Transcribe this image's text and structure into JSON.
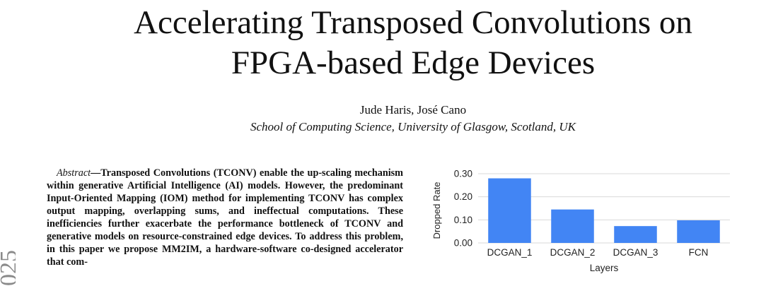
{
  "paper": {
    "title_line1": "Accelerating Transposed Convolutions on",
    "title_line2": "FPGA-based Edge Devices",
    "authors": "Jude Haris, José Cano",
    "affiliation": "School of Computing Science, University of Glasgow, Scotland, UK",
    "abstract_lead": "Abstract",
    "abstract_text": "—Transposed Convolutions (TCONV) enable the up-scaling mechanism within generative Artificial Intelligence (AI) models. However, the predominant Input-Oriented Mapping (IOM) method for implementing TCONV has complex output mapping, overlapping sums, and ineffectual computations. These inefficiencies further exacerbate the performance bottleneck of TCONV and generative models on resource-constrained edge devices. To address this problem, in this paper we propose MM2IM, a hardware-software co-designed accelerator that com-",
    "sidebar_text": "025"
  },
  "chart_data": {
    "type": "bar",
    "categories": [
      "DCGAN_1",
      "DCGAN_2",
      "DCGAN_3",
      "FCN"
    ],
    "values": [
      0.28,
      0.145,
      0.073,
      0.098
    ],
    "ylim": [
      0,
      0.3
    ],
    "yticks": [
      "0.00",
      "0.10",
      "0.20",
      "0.30"
    ],
    "xlabel": "Layers",
    "ylabel": "Dropped Rate",
    "bar_color": "#4285f4",
    "grid_color": "#d9d9d9",
    "grid": true
  }
}
